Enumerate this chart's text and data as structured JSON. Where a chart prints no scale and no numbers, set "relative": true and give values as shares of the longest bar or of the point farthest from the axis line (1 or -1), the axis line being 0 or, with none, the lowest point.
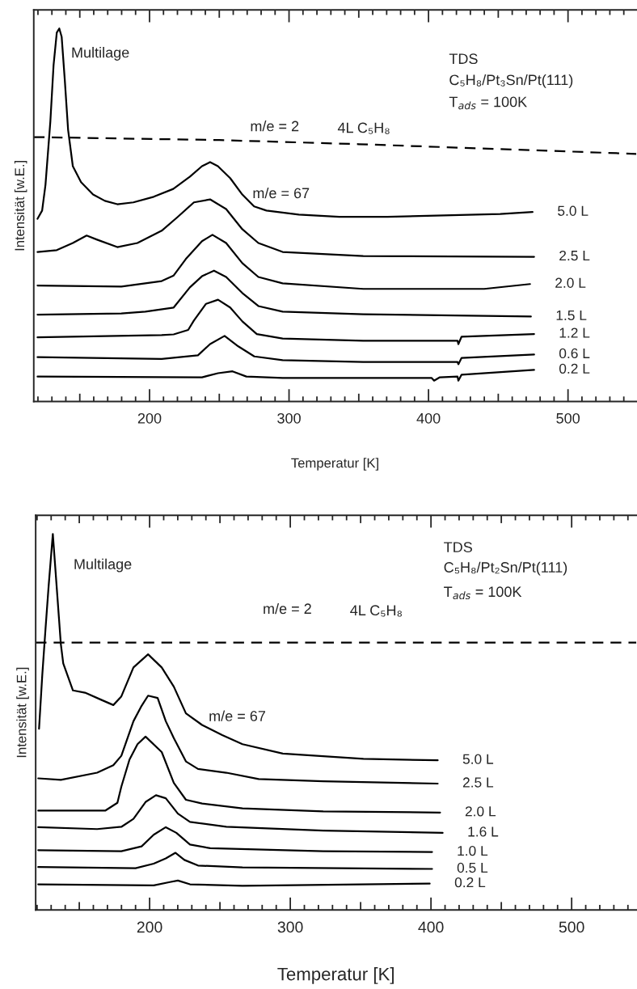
{
  "chart_data": [
    {
      "type": "line",
      "relative": true,
      "xlabel": "Temperatur [K]",
      "ylabel": "Intensität [w.E.]",
      "xlim": [
        117,
        549
      ],
      "xticks": [
        {
          "value": 120,
          "label": null
        },
        {
          "value": 130,
          "label": null
        },
        {
          "value": 140,
          "label": null
        },
        {
          "value": 150,
          "label": null
        },
        {
          "value": 160,
          "label": null
        },
        {
          "value": 170,
          "label": null
        },
        {
          "value": 180,
          "label": null
        },
        {
          "value": 190,
          "label": null
        },
        200,
        {
          "value": 210,
          "label": null
        },
        {
          "value": 220,
          "label": null
        },
        {
          "value": 230,
          "label": null
        },
        {
          "value": 240,
          "label": null
        },
        {
          "value": 250,
          "label": null
        },
        {
          "value": 260,
          "label": null
        },
        {
          "value": 270,
          "label": null
        },
        {
          "value": 280,
          "label": null
        },
        {
          "value": 290,
          "label": null
        },
        300,
        {
          "value": 310,
          "label": null
        },
        {
          "value": 320,
          "label": null
        },
        {
          "value": 330,
          "label": null
        },
        {
          "value": 340,
          "label": null
        },
        {
          "value": 350,
          "label": null
        },
        {
          "value": 360,
          "label": null
        },
        {
          "value": 370,
          "label": null
        },
        {
          "value": 380,
          "label": null
        },
        {
          "value": 390,
          "label": null
        },
        400,
        {
          "value": 410,
          "label": null
        },
        {
          "value": 420,
          "label": null
        },
        {
          "value": 430,
          "label": null
        },
        {
          "value": 440,
          "label": null
        },
        {
          "value": 450,
          "label": null
        },
        {
          "value": 460,
          "label": null
        },
        {
          "value": 470,
          "label": null
        },
        {
          "value": 480,
          "label": null
        },
        {
          "value": 490,
          "label": null
        },
        500,
        {
          "value": 510,
          "label": null
        },
        {
          "value": 520,
          "label": null
        },
        {
          "value": 530,
          "label": null
        },
        {
          "value": 540,
          "label": null
        }
      ],
      "annotations": [
        "Multilage",
        "TDS",
        "C₅H₈/Pt₃Sn/Pt(111)",
        "T$_{ads}$ = 100K",
        "m/e = 2",
        "4L C₅H₈",
        "m/e = 67"
      ],
      "series": [
        {
          "color": "#000000",
          "line_style": "dashed",
          "x": [
            117,
            150,
            250,
            350,
            450,
            549
          ],
          "values": [
            0.709,
            0.707,
            0.701,
            0.69,
            0.677,
            0.664
          ]
        },
        {
          "name": "5.0 L",
          "color": "#000000",
          "x": [
            119.7,
            123,
            125.4,
            128.9,
            131.2,
            133.5,
            135.3,
            137,
            139.3,
            141.6,
            145,
            150.9,
            159.5,
            168,
            176.9,
            188.4,
            203,
            217,
            229,
            237.6,
            243.4,
            249,
            257.8,
            266.5,
            275,
            283.8,
            307,
            336,
            370.5,
            411,
            451.4,
            474.6
          ],
          "values": [
            0.49,
            0.512,
            0.581,
            0.751,
            0.902,
            0.989,
            1.0,
            0.978,
            0.859,
            0.729,
            0.631,
            0.588,
            0.555,
            0.538,
            0.529,
            0.534,
            0.549,
            0.57,
            0.603,
            0.631,
            0.642,
            0.631,
            0.599,
            0.555,
            0.523,
            0.512,
            0.501,
            0.495,
            0.495,
            0.499,
            0.503,
            0.508
          ]
        },
        {
          "name": "2.5 L",
          "color": "#000000",
          "x": [
            119.7,
            133.5,
            145,
            154.9,
            162.4,
            176.9,
            191.3,
            208.7,
            220.2,
            231.8,
            243.4,
            254.9,
            266.5,
            278,
            295.4,
            353.2,
            475.7
          ],
          "values": [
            0.401,
            0.406,
            0.425,
            0.445,
            0.434,
            0.414,
            0.425,
            0.458,
            0.495,
            0.534,
            0.542,
            0.516,
            0.462,
            0.425,
            0.401,
            0.39,
            0.388
          ]
        },
        {
          "name": "2.0 L",
          "color": "#000000",
          "x": [
            119.7,
            179.8,
            208.7,
            217.3,
            226,
            237.6,
            245.1,
            254.9,
            266.5,
            278,
            295.4,
            353.2,
            439.9,
            472.8
          ],
          "values": [
            0.311,
            0.308,
            0.323,
            0.338,
            0.382,
            0.43,
            0.447,
            0.425,
            0.371,
            0.334,
            0.317,
            0.302,
            0.302,
            0.315
          ]
        },
        {
          "name": "1.5 L",
          "color": "#000000",
          "x": [
            119.7,
            179.8,
            197,
            217.3,
            228.9,
            237.6,
            246.2,
            254.9,
            266.5,
            278,
            295.4,
            353.2,
            473.4
          ],
          "values": [
            0.233,
            0.236,
            0.241,
            0.252,
            0.306,
            0.336,
            0.351,
            0.334,
            0.291,
            0.256,
            0.241,
            0.234,
            0.228
          ]
        },
        {
          "name": "1.2 L",
          "color": "#000000",
          "x": [
            119.7,
            208.7,
            217.3,
            227.7,
            231.8,
            240.5,
            249.1,
            257.8,
            266.5,
            276.9,
            295.4,
            353.2,
            420.8,
            421.4,
            423.7,
            475.7
          ],
          "values": [
            0.172,
            0.178,
            0.18,
            0.192,
            0.217,
            0.262,
            0.273,
            0.252,
            0.215,
            0.181,
            0.169,
            0.163,
            0.163,
            0.154,
            0.174,
            0.181
          ]
        },
        {
          "name": "0.6 L",
          "color": "#000000",
          "x": [
            119.7,
            208.7,
            234.7,
            243.4,
            253.8,
            263.6,
            275.1,
            295.4,
            353.2,
            420.8,
            421.4,
            423.7,
            475.7
          ],
          "values": [
            0.119,
            0.114,
            0.124,
            0.154,
            0.176,
            0.148,
            0.121,
            0.111,
            0.106,
            0.106,
            0.1,
            0.117,
            0.126
          ]
        },
        {
          "name": "0.2 L",
          "color": "#000000",
          "x": [
            119.7,
            237.6,
            249.1,
            259.5,
            269.4,
            295.4,
            402.3,
            404,
            408.1,
            420.8,
            421.4,
            423.7,
            475.7
          ],
          "values": [
            0.067,
            0.065,
            0.076,
            0.081,
            0.067,
            0.063,
            0.063,
            0.056,
            0.065,
            0.067,
            0.056,
            0.072,
            0.085
          ]
        }
      ]
    },
    {
      "type": "line",
      "relative": true,
      "xlabel": "Temperatur [K]",
      "ylabel": "Intensität [w.E.]",
      "xlim": [
        119,
        546
      ],
      "xticks": [
        {
          "value": 120,
          "label": null
        },
        {
          "value": 130,
          "label": null
        },
        {
          "value": 140,
          "label": null
        },
        {
          "value": 150,
          "label": null
        },
        {
          "value": 160,
          "label": null
        },
        {
          "value": 170,
          "label": null
        },
        {
          "value": 180,
          "label": null
        },
        {
          "value": 190,
          "label": null
        },
        200,
        {
          "value": 210,
          "label": null
        },
        {
          "value": 220,
          "label": null
        },
        {
          "value": 230,
          "label": null
        },
        {
          "value": 240,
          "label": null
        },
        {
          "value": 250,
          "label": null
        },
        {
          "value": 260,
          "label": null
        },
        {
          "value": 270,
          "label": null
        },
        {
          "value": 280,
          "label": null
        },
        {
          "value": 290,
          "label": null
        },
        300,
        {
          "value": 310,
          "label": null
        },
        {
          "value": 320,
          "label": null
        },
        {
          "value": 330,
          "label": null
        },
        {
          "value": 340,
          "label": null
        },
        {
          "value": 350,
          "label": null
        },
        {
          "value": 360,
          "label": null
        },
        {
          "value": 370,
          "label": null
        },
        {
          "value": 380,
          "label": null
        },
        {
          "value": 390,
          "label": null
        },
        400,
        {
          "value": 410,
          "label": null
        },
        {
          "value": 420,
          "label": null
        },
        {
          "value": 430,
          "label": null
        },
        {
          "value": 440,
          "label": null
        },
        {
          "value": 450,
          "label": null
        },
        {
          "value": 460,
          "label": null
        },
        {
          "value": 470,
          "label": null
        },
        {
          "value": 480,
          "label": null
        },
        {
          "value": 490,
          "label": null
        },
        500,
        {
          "value": 510,
          "label": null
        },
        {
          "value": 520,
          "label": null
        },
        {
          "value": 530,
          "label": null
        },
        {
          "value": 540,
          "label": null
        }
      ],
      "annotations": [
        "Multilage",
        "TDS",
        "C₅H₈/Pt₂Sn/Pt(111)",
        "T$_{ads}$ = 100K",
        "m/e = 2",
        "4L C₅H₈",
        "m/e = 67"
      ],
      "series": [
        {
          "color": "#000000",
          "line_style": "dashed",
          "x": [
            119,
            200,
            300,
            400,
            546
          ],
          "values": [
            0.711,
            0.711,
            0.711,
            0.711,
            0.711
          ]
        },
        {
          "name": "5.0 L",
          "color": "#000000",
          "x": [
            121.4,
            123.7,
            126,
            128.2,
            131.2,
            136.9,
            138.6,
            145.5,
            154.1,
            165.6,
            174.2,
            179.9,
            188.5,
            198.9,
            208.6,
            217.2,
            225.8,
            237.3,
            251.6,
            266,
            294.7,
            352,
            404.8
          ],
          "values": [
            0.482,
            0.625,
            0.748,
            0.861,
            1.0,
            0.707,
            0.656,
            0.584,
            0.578,
            0.559,
            0.545,
            0.568,
            0.645,
            0.68,
            0.645,
            0.594,
            0.523,
            0.492,
            0.465,
            0.441,
            0.416,
            0.402,
            0.398
          ]
        },
        {
          "name": "2.5 L",
          "color": "#000000",
          "x": [
            120.8,
            136.9,
            162.7,
            174.2,
            179.9,
            188.5,
            194.3,
            198.9,
            205.7,
            211.5,
            217.2,
            225.8,
            234.4,
            254.5,
            277.5,
            323.4,
            404.8
          ],
          "values": [
            0.35,
            0.346,
            0.365,
            0.385,
            0.41,
            0.502,
            0.543,
            0.57,
            0.564,
            0.502,
            0.457,
            0.395,
            0.375,
            0.365,
            0.348,
            0.342,
            0.336
          ]
        },
        {
          "name": "2.0 L",
          "color": "#000000",
          "x": [
            120.8,
            168.4,
            177.1,
            179.9,
            185.7,
            191.4,
            197.1,
            208.6,
            217.2,
            225.8,
            237.3,
            266,
            323.4,
            406.5
          ],
          "values": [
            0.264,
            0.264,
            0.285,
            0.328,
            0.4,
            0.441,
            0.461,
            0.42,
            0.338,
            0.293,
            0.283,
            0.27,
            0.262,
            0.259
          ]
        },
        {
          "name": "1.6 L",
          "color": "#000000",
          "x": [
            120.8,
            162.7,
            179.9,
            188.5,
            197.1,
            204.5,
            211.5,
            220.1,
            228.7,
            254.5,
            323.4,
            408.3
          ],
          "values": [
            0.22,
            0.215,
            0.221,
            0.242,
            0.287,
            0.305,
            0.297,
            0.256,
            0.234,
            0.221,
            0.211,
            0.205
          ]
        },
        {
          "name": "1.0 L",
          "color": "#000000",
          "x": [
            120.8,
            179.9,
            194.3,
            202.9,
            211.5,
            219,
            228.7,
            243.1,
            323.4,
            400.8
          ],
          "values": [
            0.159,
            0.156,
            0.169,
            0.2,
            0.22,
            0.205,
            0.174,
            0.164,
            0.156,
            0.154
          ]
        },
        {
          "name": "0.5 L",
          "color": "#000000",
          "x": [
            120.8,
            190,
            202.9,
            211.5,
            218.4,
            224.7,
            234.4,
            266,
            400.8
          ],
          "values": [
            0.114,
            0.111,
            0.123,
            0.137,
            0.152,
            0.133,
            0.118,
            0.113,
            0.109
          ]
        },
        {
          "name": "0.2 L",
          "color": "#000000",
          "x": [
            120.8,
            202.9,
            214.4,
            220.1,
            228.7,
            266,
            399.1
          ],
          "values": [
            0.068,
            0.065,
            0.074,
            0.078,
            0.068,
            0.064,
            0.07
          ]
        }
      ]
    }
  ]
}
